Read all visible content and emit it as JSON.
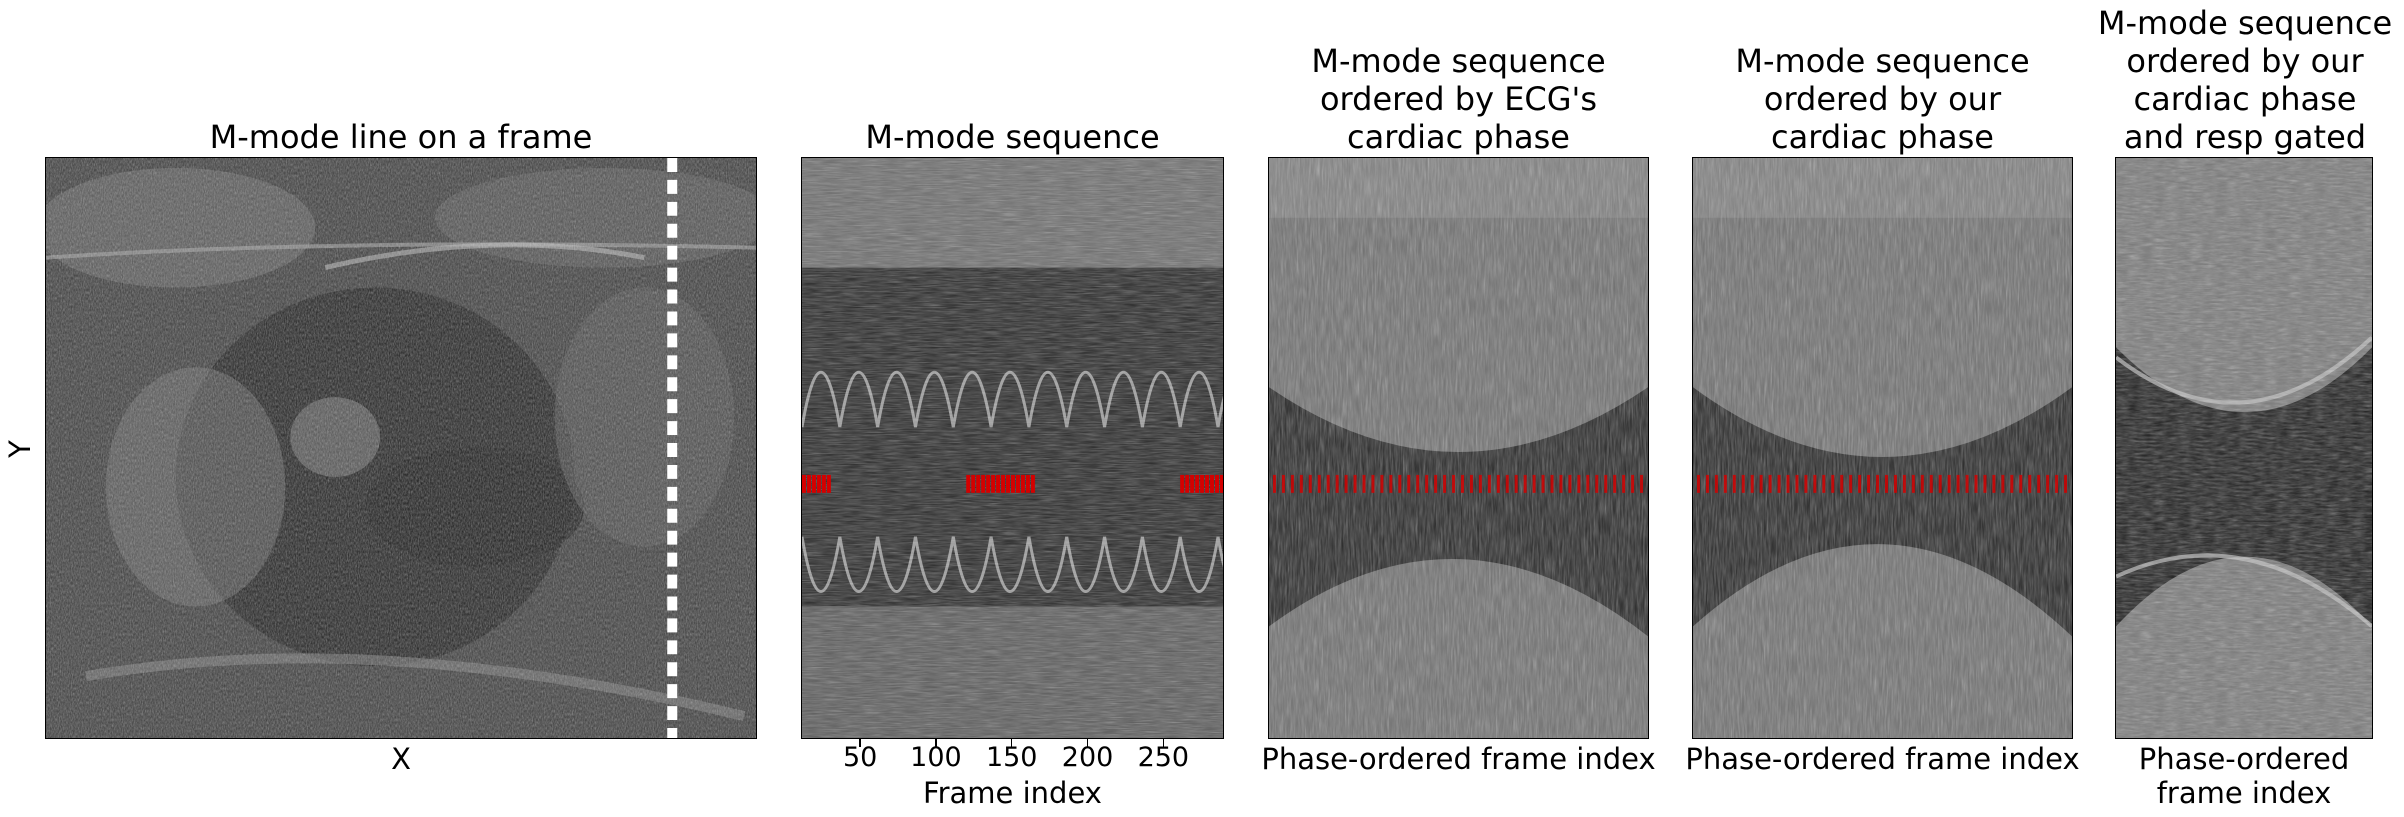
{
  "figure": {
    "panels": [
      {
        "id": "frame",
        "title": "M-mode line on a frame",
        "xlabel": "X",
        "ylabel": "Y"
      },
      {
        "id": "sequence",
        "title": "M-mode sequence",
        "xlabel": "Frame index",
        "xticks": [
          "50",
          "100",
          "150",
          "200",
          "250"
        ]
      },
      {
        "id": "ecg",
        "title": "M-mode sequence\nordered by ECG's\ncardiac phase",
        "xlabel": "Phase-ordered frame index"
      },
      {
        "id": "ours",
        "title": "M-mode sequence\nordered by our\ncardiac phase",
        "xlabel": "Phase-ordered frame index"
      },
      {
        "id": "gated",
        "title": "M-mode sequence\nordered by our\ncardiac phase\nand resp gated",
        "xlabel": "Phase-ordered\nframe index"
      }
    ],
    "colors": {
      "marker": "#d40000",
      "mline": "#ffffff",
      "background": "#2a2a2a"
    }
  }
}
